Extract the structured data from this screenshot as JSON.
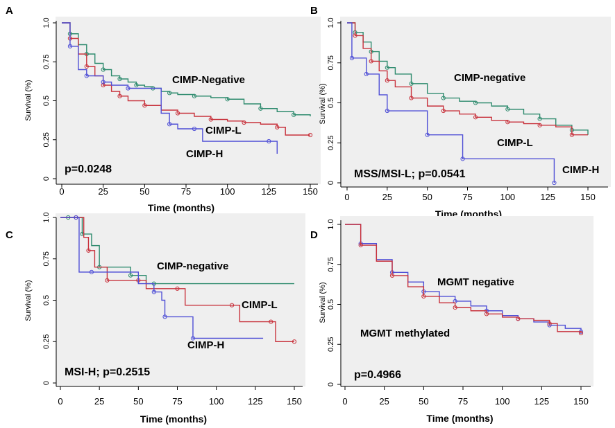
{
  "figure": {
    "panels": [
      "A",
      "B",
      "C",
      "D"
    ]
  },
  "chart_data": [
    {
      "panel": "A",
      "type": "line",
      "xlabel": "Time (months)",
      "ylabel": "Survival (%)",
      "xlim": [
        0,
        150
      ],
      "ylim": [
        0,
        1
      ],
      "xticks": [
        "0",
        "25",
        "50",
        "75",
        "100",
        "125",
        "150"
      ],
      "yticks": [
        "0",
        "0.25",
        "0.5",
        "0.75",
        "1.0"
      ],
      "pvalue": "p=0.0248",
      "series": [
        {
          "name": "CIMP-Negative",
          "color": "#2e8b6e",
          "x": [
            0,
            5,
            10,
            15,
            20,
            25,
            30,
            35,
            40,
            45,
            50,
            55,
            60,
            65,
            70,
            80,
            90,
            100,
            110,
            120,
            130,
            140,
            150
          ],
          "y": [
            1.0,
            0.93,
            0.86,
            0.8,
            0.74,
            0.7,
            0.66,
            0.64,
            0.62,
            0.6,
            0.59,
            0.58,
            0.56,
            0.55,
            0.54,
            0.53,
            0.52,
            0.51,
            0.48,
            0.45,
            0.43,
            0.41,
            0.4
          ]
        },
        {
          "name": "CIMP-L",
          "color": "#c8323c",
          "x": [
            0,
            5,
            10,
            15,
            20,
            25,
            30,
            35,
            40,
            50,
            60,
            70,
            80,
            90,
            100,
            110,
            120,
            130,
            135,
            150
          ],
          "y": [
            1.0,
            0.9,
            0.8,
            0.72,
            0.66,
            0.6,
            0.56,
            0.53,
            0.5,
            0.47,
            0.44,
            0.42,
            0.4,
            0.38,
            0.37,
            0.36,
            0.35,
            0.33,
            0.28,
            0.28
          ]
        },
        {
          "name": "CIMP-H",
          "color": "#4f4fd6",
          "x": [
            0,
            5,
            10,
            15,
            20,
            25,
            30,
            40,
            60,
            65,
            70,
            80,
            85,
            125,
            130
          ],
          "y": [
            1.0,
            0.85,
            0.7,
            0.66,
            0.66,
            0.62,
            0.6,
            0.58,
            0.42,
            0.35,
            0.32,
            0.32,
            0.24,
            0.24,
            0.16
          ]
        }
      ],
      "labels": [
        "CIMP-Negative",
        "CIMP-L",
        "CIMP-H"
      ]
    },
    {
      "panel": "B",
      "type": "line",
      "xlabel": "Time (months)",
      "ylabel": "Survival (%)",
      "xlim": [
        0,
        150
      ],
      "ylim": [
        0,
        1
      ],
      "xticks": [
        "0",
        "25",
        "50",
        "75",
        "100",
        "125",
        "150"
      ],
      "yticks": [
        "0",
        "0.25",
        "0.5",
        "0.75",
        "1.0"
      ],
      "pvalue": "MSS/MSI-L; p=0.0541",
      "series": [
        {
          "name": "CIMP-negative",
          "color": "#2e8b6e",
          "x": [
            0,
            5,
            10,
            15,
            20,
            25,
            30,
            40,
            50,
            60,
            70,
            80,
            90,
            100,
            110,
            120,
            130,
            140,
            150
          ],
          "y": [
            1.0,
            0.94,
            0.88,
            0.82,
            0.76,
            0.72,
            0.68,
            0.62,
            0.56,
            0.53,
            0.51,
            0.5,
            0.48,
            0.46,
            0.43,
            0.4,
            0.36,
            0.33,
            0.3
          ]
        },
        {
          "name": "CIMP-L",
          "color": "#c8323c",
          "x": [
            0,
            5,
            10,
            15,
            20,
            25,
            30,
            40,
            50,
            60,
            70,
            80,
            90,
            100,
            110,
            120,
            130,
            140,
            150
          ],
          "y": [
            1.0,
            0.92,
            0.84,
            0.76,
            0.7,
            0.64,
            0.6,
            0.53,
            0.48,
            0.45,
            0.43,
            0.41,
            0.39,
            0.38,
            0.37,
            0.36,
            0.35,
            0.3,
            0.3
          ]
        },
        {
          "name": "CIMP-H",
          "color": "#4f4fd6",
          "x": [
            0,
            3,
            10,
            12,
            20,
            25,
            48,
            50,
            70,
            72,
            128,
            129
          ],
          "y": [
            1.0,
            0.78,
            0.78,
            0.68,
            0.55,
            0.45,
            0.45,
            0.3,
            0.3,
            0.15,
            0.15,
            0.0
          ]
        }
      ],
      "labels": [
        "CIMP-negative",
        "CIMP-L",
        "CIMP-H"
      ]
    },
    {
      "panel": "C",
      "type": "line",
      "xlabel": "Time (months)",
      "ylabel": "Survival (%)",
      "xlim": [
        0,
        150
      ],
      "ylim": [
        0,
        1
      ],
      "xticks": [
        "0",
        "25",
        "50",
        "75",
        "100",
        "125",
        "150"
      ],
      "yticks": [
        "0",
        "0.25",
        "0.5",
        "0.75",
        "1.0"
      ],
      "pvalue": "MSI-H; p=0.2515",
      "series": [
        {
          "name": "CIMP-negative",
          "color": "#2e8b6e",
          "x": [
            0,
            5,
            10,
            14,
            20,
            25,
            35,
            45,
            55,
            60,
            150
          ],
          "y": [
            1.0,
            1.0,
            1.0,
            0.9,
            0.83,
            0.7,
            0.7,
            0.65,
            0.6,
            0.6,
            0.6
          ]
        },
        {
          "name": "CIMP-L",
          "color": "#c8323c",
          "x": [
            0,
            10,
            15,
            18,
            22,
            30,
            40,
            50,
            55,
            75,
            80,
            110,
            115,
            135,
            138,
            150
          ],
          "y": [
            1.0,
            1.0,
            0.88,
            0.8,
            0.7,
            0.62,
            0.62,
            0.62,
            0.57,
            0.57,
            0.47,
            0.47,
            0.37,
            0.37,
            0.25,
            0.25
          ]
        },
        {
          "name": "CIMP-H",
          "color": "#4f4fd6",
          "x": [
            0,
            10,
            12,
            20,
            50,
            60,
            65,
            67,
            80,
            85,
            130
          ],
          "y": [
            1.0,
            1.0,
            0.67,
            0.67,
            0.6,
            0.55,
            0.5,
            0.4,
            0.4,
            0.27,
            0.27
          ]
        }
      ],
      "labels": [
        "CIMP-negative",
        "CIMP-L",
        "CIMP-H"
      ]
    },
    {
      "panel": "D",
      "type": "line",
      "xlabel": "Time (months)",
      "ylabel": "Survival (%)",
      "xlim": [
        0,
        150
      ],
      "ylim": [
        0,
        1
      ],
      "xticks": [
        "0",
        "25",
        "50",
        "75",
        "100",
        "125",
        "150"
      ],
      "yticks": [
        "0",
        "0.25",
        "0.5",
        "0.75",
        "1.0"
      ],
      "pvalue": "p=0.4966",
      "series": [
        {
          "name": "MGMT negative",
          "color": "#4f4fd6",
          "x": [
            0,
            10,
            20,
            30,
            40,
            50,
            60,
            70,
            80,
            90,
            100,
            110,
            120,
            130,
            140,
            150
          ],
          "y": [
            1.0,
            0.88,
            0.78,
            0.7,
            0.64,
            0.58,
            0.55,
            0.52,
            0.49,
            0.46,
            0.43,
            0.41,
            0.39,
            0.37,
            0.35,
            0.33
          ]
        },
        {
          "name": "MGMT methylated",
          "color": "#c8323c",
          "x": [
            0,
            10,
            20,
            30,
            40,
            50,
            60,
            70,
            80,
            90,
            100,
            110,
            120,
            130,
            135,
            150
          ],
          "y": [
            1.0,
            0.87,
            0.77,
            0.68,
            0.61,
            0.55,
            0.51,
            0.48,
            0.46,
            0.44,
            0.42,
            0.41,
            0.4,
            0.38,
            0.33,
            0.32
          ]
        }
      ],
      "labels": [
        "MGMT negative",
        "MGMT methylated"
      ]
    }
  ]
}
